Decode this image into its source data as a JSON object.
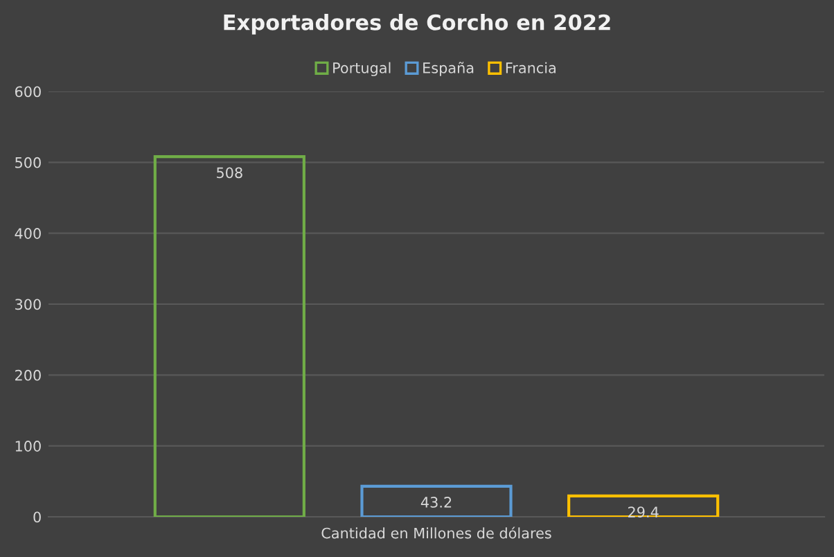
{
  "chart_data": {
    "type": "bar",
    "title": "Exportadores de Corcho en 2022",
    "xlabel": "Cantidad en Millones de dólares",
    "categories": [
      null
    ],
    "series": [
      {
        "name": "Portugal",
        "color": "#70ad47",
        "values": [
          508
        ]
      },
      {
        "name": "España",
        "color": "#5b9bd5",
        "values": [
          43.2
        ]
      },
      {
        "name": "Francia",
        "color": "#ffc000",
        "values": [
          29.4
        ]
      }
    ],
    "ylim": [
      0,
      600
    ],
    "yticks": [
      0,
      100,
      200,
      300,
      400,
      500,
      600
    ],
    "grid": "y",
    "legend": "top",
    "data_labels": true
  }
}
